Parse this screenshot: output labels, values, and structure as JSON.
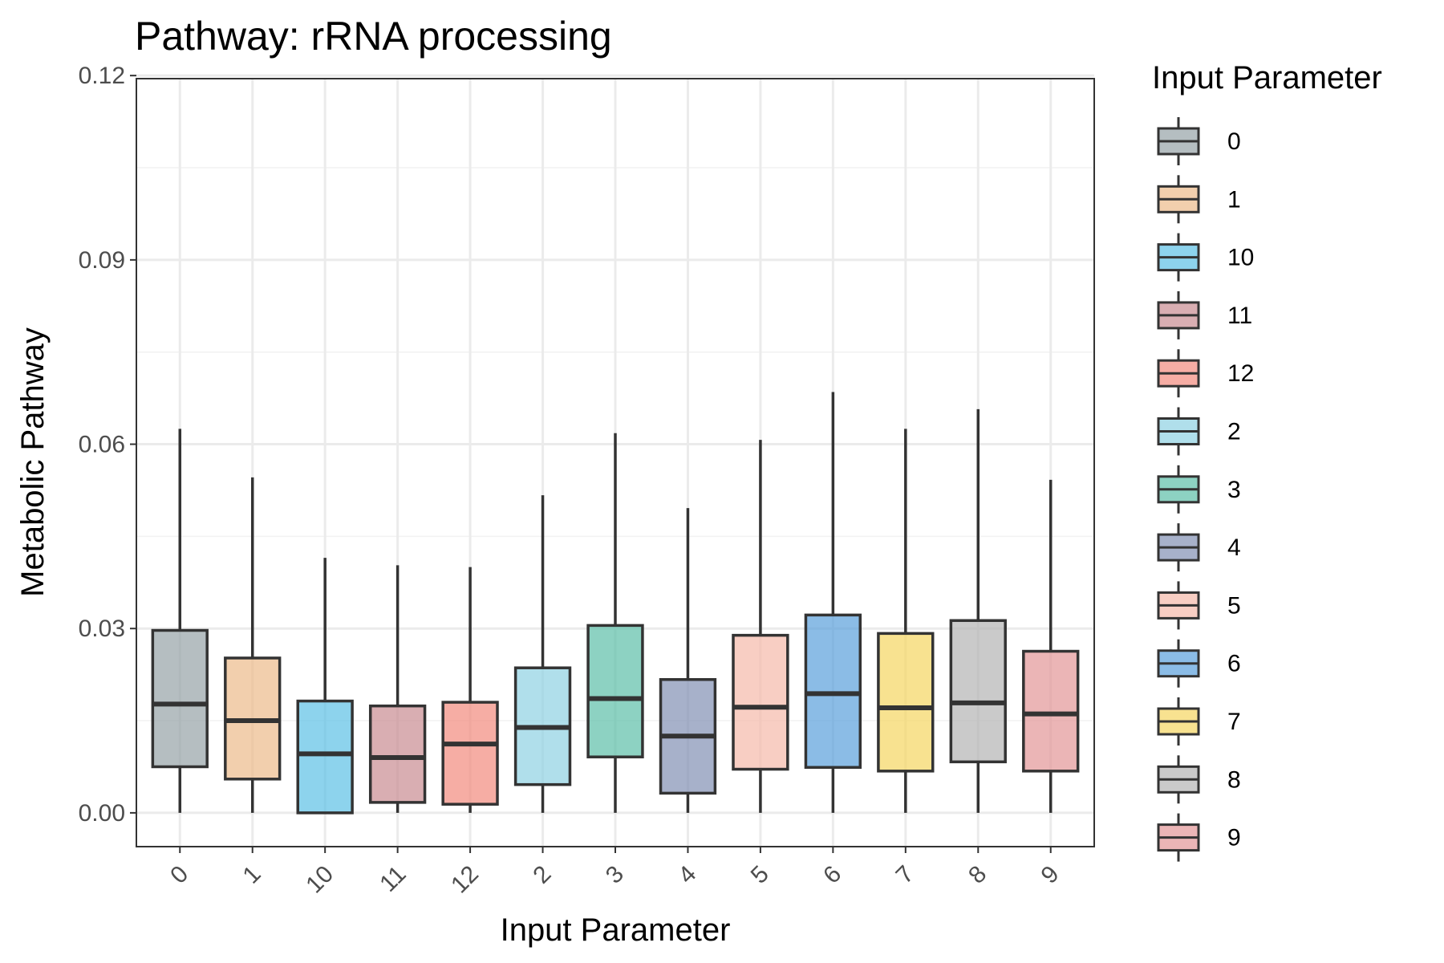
{
  "chart_data": {
    "type": "box",
    "title": "Pathway: rRNA processing",
    "xlabel": "Input Parameter",
    "ylabel": "Metabolic Pathway",
    "ylim": [
      -0.0055,
      0.1195
    ],
    "yticks": [
      "0.00",
      "0.03",
      "0.06",
      "0.09",
      "0.12"
    ],
    "grid": true,
    "legend": {
      "title": "Input Parameter",
      "placement": "right"
    },
    "categories": [
      "0",
      "1",
      "10",
      "11",
      "12",
      "2",
      "3",
      "4",
      "5",
      "6",
      "7",
      "8",
      "9"
    ],
    "boxes": [
      {
        "category": "0",
        "min": 0.0,
        "q1": 0.0075,
        "median": 0.0177,
        "q3": 0.0297,
        "max": 0.0625,
        "color": "#95a3a6"
      },
      {
        "category": "1",
        "min": 0.0,
        "q1": 0.0055,
        "median": 0.015,
        "q3": 0.0252,
        "max": 0.0546,
        "color": "#edbb8a"
      },
      {
        "category": "10",
        "min": 0.0,
        "q1": 0.0,
        "median": 0.0096,
        "q3": 0.0182,
        "max": 0.0415,
        "color": "#5dc1e6"
      },
      {
        "category": "11",
        "min": 0.0,
        "q1": 0.0017,
        "median": 0.009,
        "q3": 0.0174,
        "max": 0.0403,
        "color": "#c98c91"
      },
      {
        "category": "12",
        "min": 0.0,
        "q1": 0.0014,
        "median": 0.0112,
        "q3": 0.018,
        "max": 0.04,
        "color": "#f28a7e"
      },
      {
        "category": "2",
        "min": 0.0,
        "q1": 0.0046,
        "median": 0.0139,
        "q3": 0.0236,
        "max": 0.0517,
        "color": "#8fd2e3"
      },
      {
        "category": "3",
        "min": 0.0,
        "q1": 0.0091,
        "median": 0.0186,
        "q3": 0.0305,
        "max": 0.0618,
        "color": "#5dbfa8"
      },
      {
        "category": "4",
        "min": 0.0,
        "q1": 0.0032,
        "median": 0.0125,
        "q3": 0.0217,
        "max": 0.0496,
        "color": "#8290b3"
      },
      {
        "category": "5",
        "min": 0.0,
        "q1": 0.0071,
        "median": 0.0172,
        "q3": 0.0289,
        "max": 0.0607,
        "color": "#f5b9aa"
      },
      {
        "category": "6",
        "min": 0.0,
        "q1": 0.0074,
        "median": 0.0194,
        "q3": 0.0322,
        "max": 0.0685,
        "color": "#5aa0db"
      },
      {
        "category": "7",
        "min": 0.0,
        "q1": 0.0068,
        "median": 0.0171,
        "q3": 0.0292,
        "max": 0.0625,
        "color": "#f5d561"
      },
      {
        "category": "8",
        "min": 0.0,
        "q1": 0.0083,
        "median": 0.0179,
        "q3": 0.0313,
        "max": 0.0657,
        "color": "#b3b3b3"
      },
      {
        "category": "9",
        "min": 0.0,
        "q1": 0.0068,
        "median": 0.0161,
        "q3": 0.0263,
        "max": 0.0542,
        "color": "#e29597"
      }
    ]
  }
}
